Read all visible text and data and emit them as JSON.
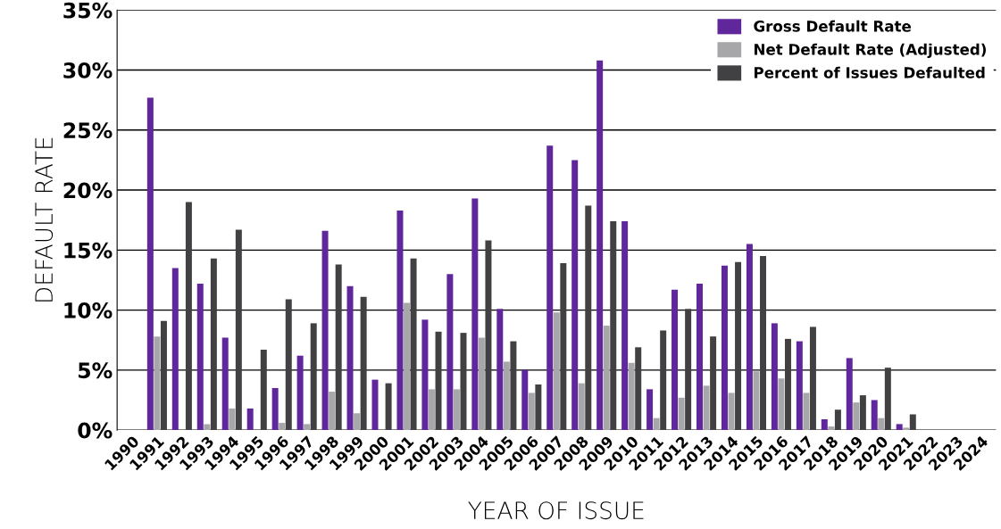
{
  "chart_data": {
    "type": "bar",
    "xlabel": "YEAR OF ISSUE",
    "ylabel": "DEFAULT RATE",
    "categories": [
      "1990",
      "1991",
      "1992",
      "1993",
      "1994",
      "1995",
      "1996",
      "1997",
      "1998",
      "1999",
      "2000",
      "2001",
      "2002",
      "2003",
      "2004",
      "2005",
      "2006",
      "2007",
      "2008",
      "2009",
      "2010",
      "2011",
      "2012",
      "2013",
      "2014",
      "2015",
      "2016",
      "2017",
      "2018",
      "2019",
      "2020",
      "2021",
      "2022",
      "2023",
      "2024"
    ],
    "series": [
      {
        "name": "Gross Default Rate",
        "color": "#5f279b",
        "values": [
          0,
          27.7,
          13.5,
          12.2,
          7.7,
          1.8,
          3.5,
          6.2,
          16.6,
          12.0,
          4.2,
          18.3,
          9.2,
          13.0,
          19.3,
          10.1,
          5.0,
          23.7,
          22.5,
          30.8,
          17.4,
          3.4,
          11.7,
          12.2,
          13.7,
          15.5,
          8.9,
          7.4,
          0.9,
          6.0,
          2.5,
          0.5,
          0,
          0,
          0
        ]
      },
      {
        "name": "Net Default Rate (Adjusted)",
        "color": "#a7a7aa",
        "values": [
          0,
          7.8,
          0,
          0.5,
          1.8,
          0,
          0.6,
          0.5,
          3.2,
          1.4,
          0,
          10.6,
          3.4,
          3.4,
          7.7,
          5.7,
          3.1,
          9.8,
          3.9,
          8.7,
          5.6,
          1.0,
          2.7,
          3.7,
          3.1,
          4.9,
          4.3,
          3.1,
          0.3,
          2.3,
          1.0,
          0.2,
          0,
          0,
          0
        ]
      },
      {
        "name": "Percent of Issues Defaulted",
        "color": "#414042",
        "values": [
          0,
          9.1,
          19.0,
          14.3,
          16.7,
          6.7,
          10.9,
          8.9,
          13.8,
          11.1,
          3.9,
          14.3,
          8.2,
          8.1,
          15.8,
          7.4,
          3.8,
          13.9,
          18.7,
          17.4,
          6.9,
          8.3,
          10.1,
          7.8,
          14.0,
          14.5,
          7.6,
          8.6,
          1.7,
          2.9,
          5.2,
          1.3,
          0,
          0,
          0
        ]
      }
    ],
    "ylim": [
      0,
      35
    ],
    "yticks": [
      {
        "value": 0,
        "label": "0%"
      },
      {
        "value": 5,
        "label": "5%"
      },
      {
        "value": 10,
        "label": "10%"
      },
      {
        "value": 15,
        "label": "15%"
      },
      {
        "value": 20,
        "label": "20%"
      },
      {
        "value": 25,
        "label": "25%"
      },
      {
        "value": 30,
        "label": "30%"
      },
      {
        "value": 35,
        "label": "35%"
      }
    ],
    "grid": "y",
    "legend": "top right"
  }
}
